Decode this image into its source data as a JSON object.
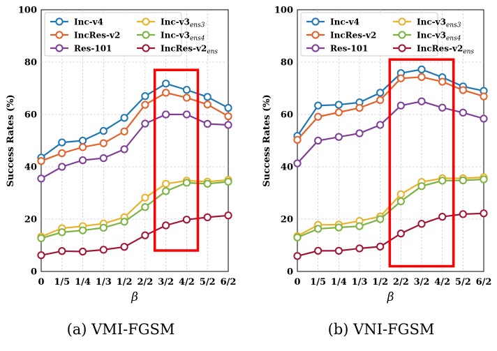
{
  "chart_data": [
    {
      "type": "line",
      "caption": "(a) VMI-FGSM",
      "xlabel": "β",
      "ylabel": "Success Rates (%)",
      "ylim": [
        0,
        100
      ],
      "yticks": [
        "0",
        "20",
        "40",
        "60",
        "80",
        "100"
      ],
      "categories": [
        "0",
        "1/5",
        "1/4",
        "1/3",
        "1/2",
        "2/2",
        "3/2",
        "4/2",
        "5/2",
        "6/2"
      ],
      "grid": true,
      "legend_position": "top-left",
      "highlight": {
        "color": "#ff0000",
        "from_category": "3/2",
        "to_category": "4/2",
        "y_from": 8,
        "y_to": 77
      },
      "series": [
        {
          "name": "Inc-v4",
          "base": "Inc-v4",
          "sub": "",
          "color": "#1f77b4",
          "values": [
            43.5,
            49.3,
            50.0,
            53.7,
            58.7,
            67.0,
            71.8,
            69.4,
            66.7,
            62.5
          ]
        },
        {
          "name": "IncRes-v2",
          "base": "IncRes-v2",
          "sub": "",
          "color": "#e6612a",
          "values": [
            42.2,
            45.2,
            47.5,
            49.0,
            53.5,
            63.7,
            68.3,
            66.4,
            63.8,
            59.3
          ]
        },
        {
          "name": "Res-101",
          "base": "Res-101",
          "sub": "",
          "color": "#7f3f98",
          "values": [
            35.5,
            40.0,
            42.5,
            43.3,
            46.7,
            56.5,
            60.0,
            60.0,
            56.4,
            56.0
          ]
        },
        {
          "name": "Inc-v3ens3",
          "base": "Inc-v3",
          "sub": "ens3",
          "color": "#e8b32a",
          "values": [
            13.3,
            16.5,
            17.3,
            18.3,
            20.7,
            28.2,
            33.5,
            34.7,
            34.3,
            35.0
          ]
        },
        {
          "name": "Inc-v3ens4",
          "base": "Inc-v3",
          "sub": "ens4",
          "color": "#7cb342",
          "values": [
            12.7,
            15.0,
            15.7,
            16.7,
            19.0,
            24.6,
            30.7,
            33.9,
            33.5,
            34.3
          ]
        },
        {
          "name": "IncRes-v2ens",
          "base": "IncRes-v2",
          "sub": "ens",
          "color": "#a31535",
          "values": [
            6.2,
            7.8,
            7.6,
            8.3,
            9.4,
            13.8,
            17.6,
            19.8,
            20.7,
            21.4
          ]
        }
      ]
    },
    {
      "type": "line",
      "caption": "(b) VNI-FGSM",
      "xlabel": "β",
      "ylabel": "Success Rates (%)",
      "ylim": [
        0,
        100
      ],
      "yticks": [
        "0",
        "20",
        "40",
        "60",
        "80",
        "100"
      ],
      "categories": [
        "0",
        "1/5",
        "1/4",
        "1/3",
        "1/2",
        "2/2",
        "3/2",
        "4/2",
        "5/2",
        "6/2"
      ],
      "grid": true,
      "legend_position": "top-left",
      "highlight": {
        "color": "#ff0000",
        "from_category": "2/2",
        "to_category": "4/2",
        "y_from": 2,
        "y_to": 81
      },
      "series": [
        {
          "name": "Inc-v4",
          "base": "Inc-v4",
          "sub": "",
          "color": "#1f77b4",
          "values": [
            51.8,
            63.4,
            63.7,
            64.6,
            68.3,
            75.8,
            77.2,
            74.2,
            70.7,
            69.0
          ]
        },
        {
          "name": "IncRes-v2",
          "base": "IncRes-v2",
          "sub": "",
          "color": "#e6612a",
          "values": [
            50.3,
            59.1,
            60.8,
            62.5,
            65.5,
            73.8,
            74.3,
            72.5,
            69.3,
            66.9
          ]
        },
        {
          "name": "Res-101",
          "base": "Res-101",
          "sub": "",
          "color": "#7f3f98",
          "values": [
            41.3,
            50.0,
            51.4,
            52.8,
            56.0,
            63.4,
            65.0,
            62.6,
            60.7,
            58.4
          ]
        },
        {
          "name": "Inc-v3ens3",
          "base": "Inc-v3",
          "sub": "ens3",
          "color": "#e8b32a",
          "values": [
            13.5,
            17.8,
            17.9,
            19.3,
            21.0,
            29.5,
            34.2,
            35.6,
            35.6,
            36.0
          ]
        },
        {
          "name": "Inc-v3ens4",
          "base": "Inc-v3",
          "sub": "ens4",
          "color": "#7cb342",
          "values": [
            13.0,
            16.3,
            16.8,
            17.3,
            20.0,
            26.8,
            32.6,
            34.7,
            34.8,
            35.2
          ]
        },
        {
          "name": "IncRes-v2ens",
          "base": "IncRes-v2",
          "sub": "ens",
          "color": "#a31535",
          "values": [
            5.9,
            7.9,
            7.9,
            8.8,
            9.5,
            14.5,
            18.2,
            20.9,
            21.9,
            22.2
          ]
        }
      ]
    }
  ]
}
